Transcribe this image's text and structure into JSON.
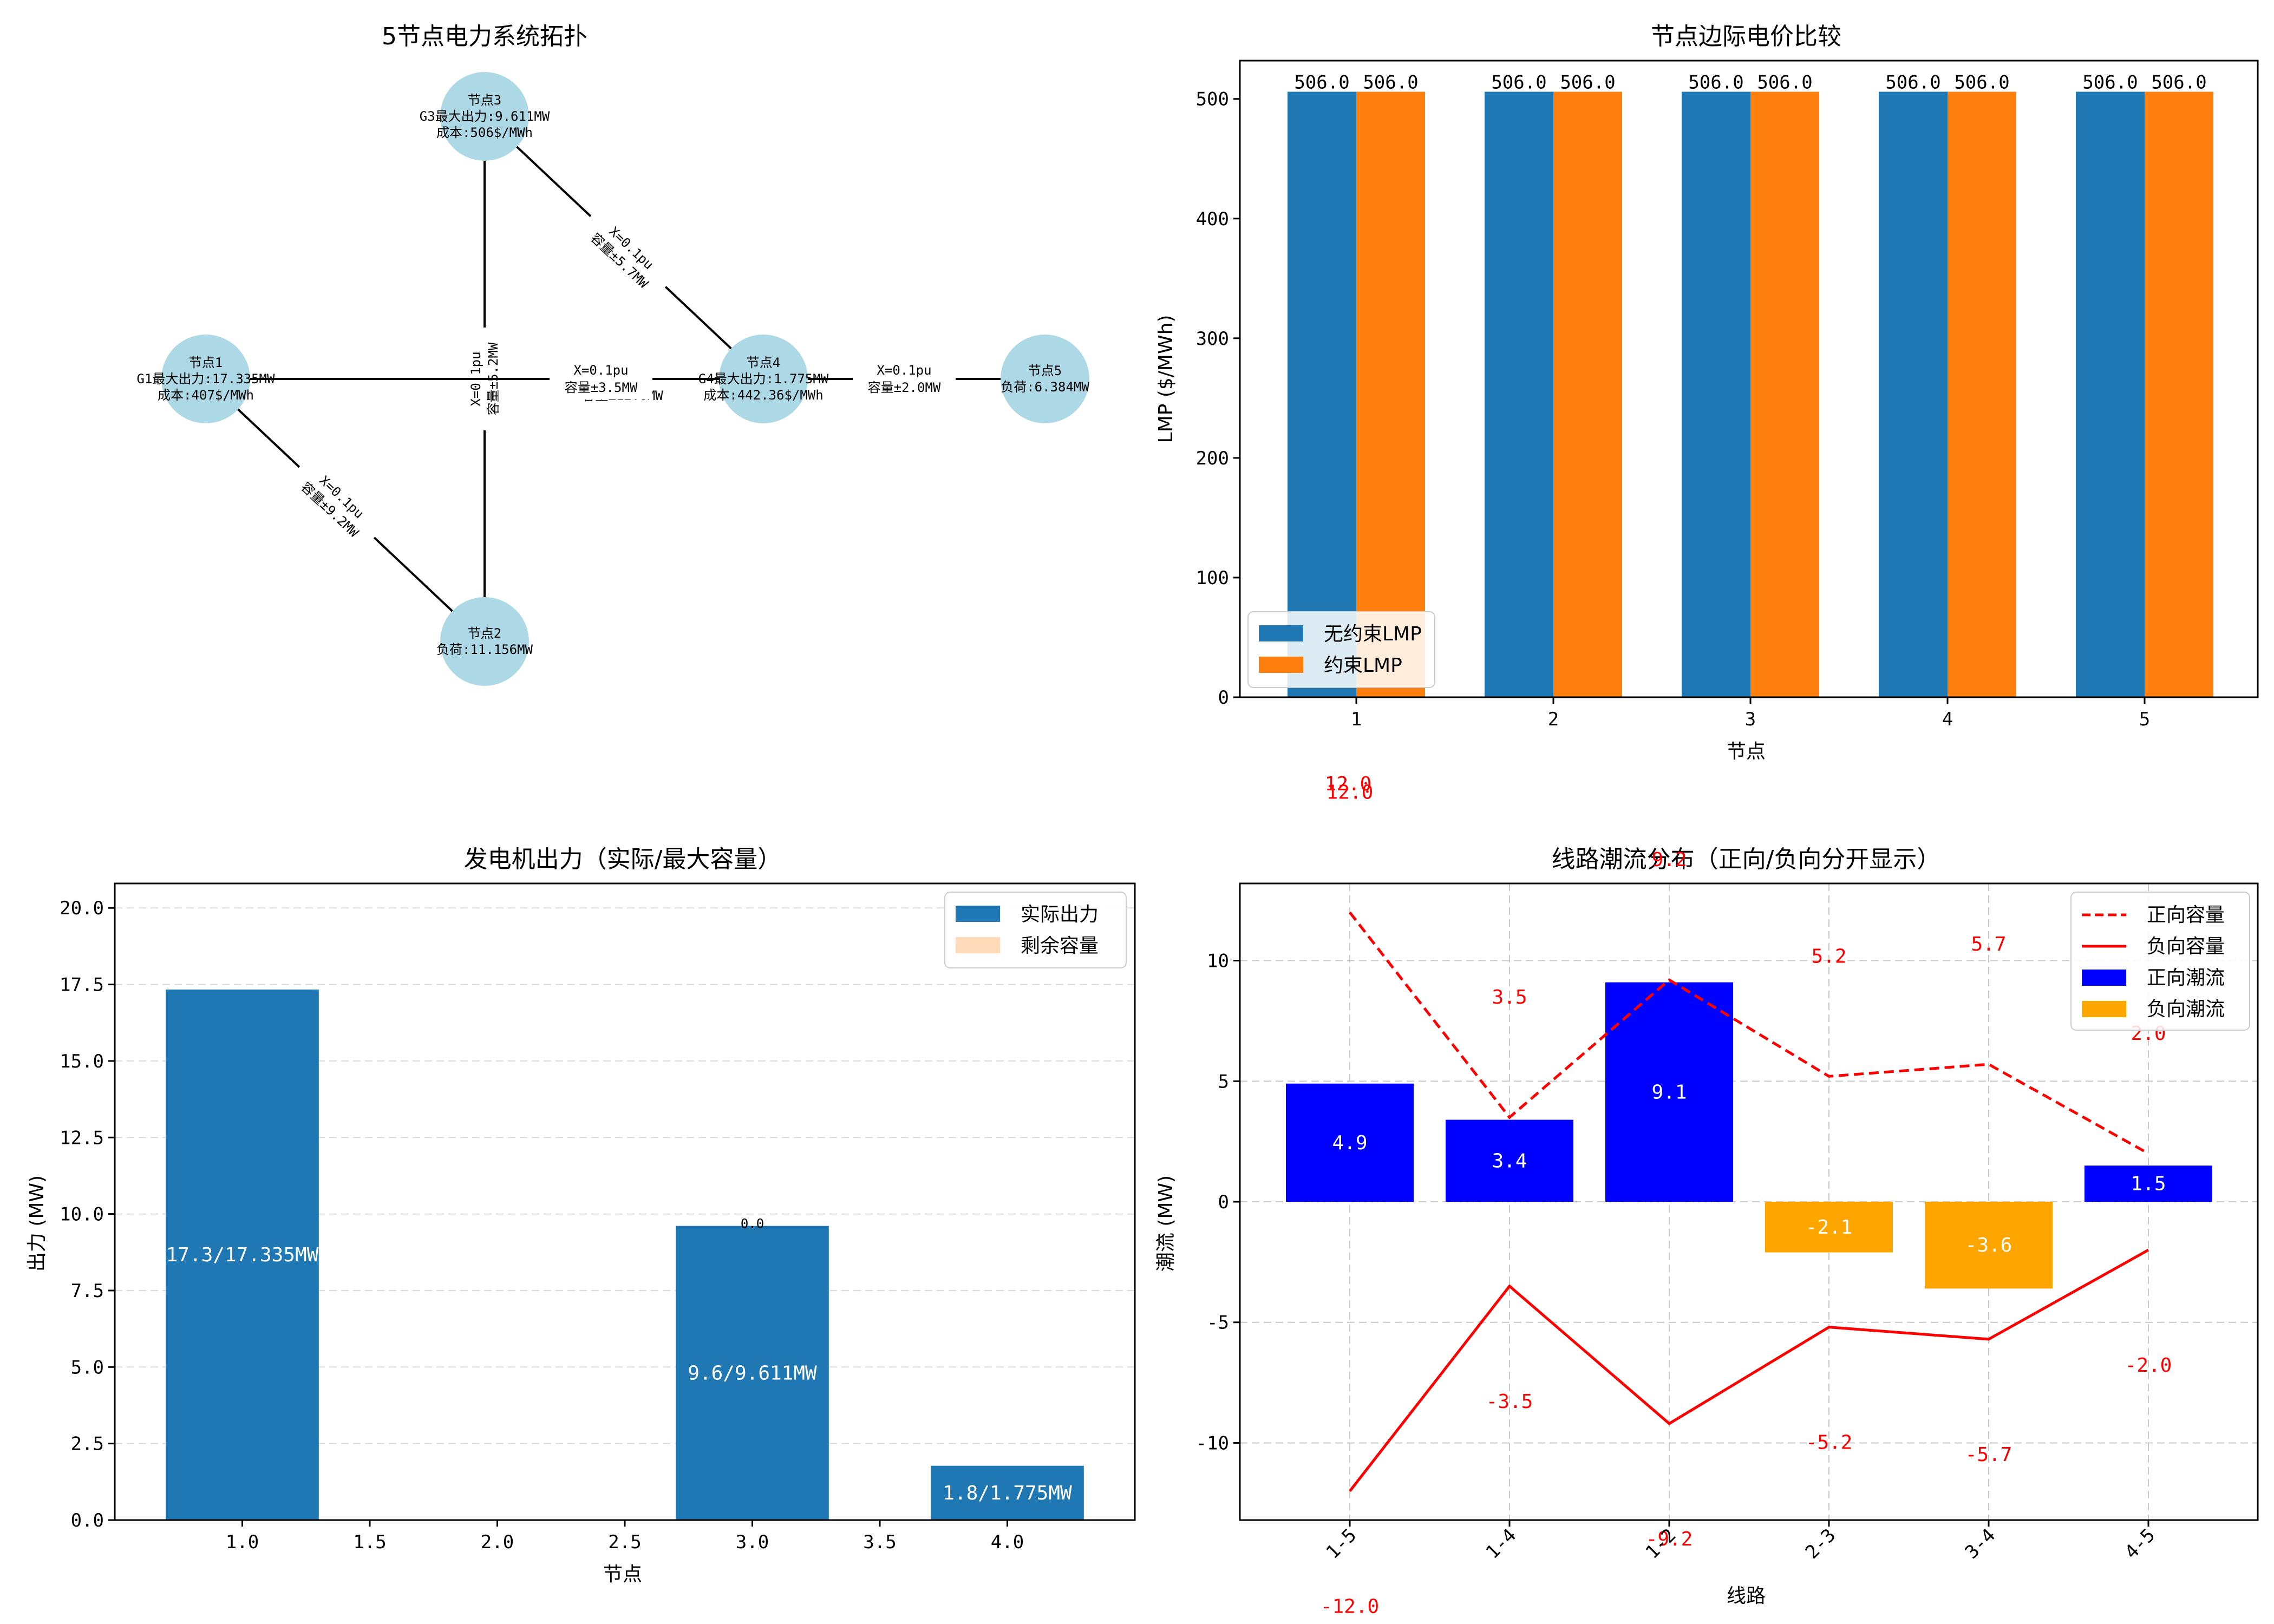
{
  "chart_data": [
    {
      "type": "network",
      "title": "5节点电力系统拓扑",
      "nodes": [
        {
          "id": "1",
          "lines": [
            "节点1",
            "G1最大出力:17.335MW",
            "成本:407$/MWh"
          ]
        },
        {
          "id": "2",
          "lines": [
            "节点2",
            "负荷:11.156MW"
          ]
        },
        {
          "id": "3",
          "lines": [
            "节点3",
            "G3最大出力:9.611MW",
            "成本:506$/MWh"
          ]
        },
        {
          "id": "4",
          "lines": [
            "节点4",
            "G4最大出力:1.775MW",
            "成本:442.36$/MWh"
          ]
        },
        {
          "id": "5",
          "lines": [
            "节点5",
            "负荷:6.384MW"
          ]
        }
      ],
      "edges": [
        {
          "from": "1",
          "to": "5",
          "lines": [
            "X=0.1pu",
            "容量±12.0MW"
          ]
        },
        {
          "from": "1",
          "to": "2",
          "lines": [
            "X=0.1pu",
            "容量±9.2MW"
          ]
        },
        {
          "from": "2",
          "to": "3",
          "lines": [
            "X=0.1pu",
            "容量±5.2MW"
          ]
        },
        {
          "from": "3",
          "to": "4",
          "lines": [
            "X=0.1pu",
            "容量±5.7MW"
          ]
        },
        {
          "from": "4",
          "to": "5",
          "lines": [
            "X=0.1pu",
            "容量±2.0MW"
          ]
        },
        {
          "from": "1",
          "to": "4",
          "lines": [
            "X=0.1pu",
            "容量±3.5MW"
          ]
        }
      ]
    },
    {
      "type": "bar",
      "title": "节点边际电价比较",
      "xlabel": "节点",
      "ylabel": "LMP ($/MWh)",
      "ylim": [
        0,
        532
      ],
      "yticks": [
        0,
        100,
        200,
        300,
        400,
        500
      ],
      "categories": [
        "1",
        "2",
        "3",
        "4",
        "5"
      ],
      "series": [
        {
          "name": "无约束LMP",
          "values": [
            506.0,
            506.0,
            506.0,
            506.0,
            506.0
          ],
          "color": "#1f77b4"
        },
        {
          "name": "约束LMP",
          "values": [
            506.0,
            506.0,
            506.0,
            506.0,
            506.0
          ],
          "color": "#ff7f0e"
        }
      ],
      "legend": "lower-left",
      "stray_label": "12.0"
    },
    {
      "type": "bar",
      "title": "发电机出力（实际/最大容量）",
      "xlabel": "节点",
      "ylabel": "出力 (MW)",
      "xlim": [
        0.5,
        4.5
      ],
      "ylim": [
        0,
        20.8
      ],
      "xticks": [
        1.0,
        1.5,
        2.0,
        2.5,
        3.0,
        3.5,
        4.0
      ],
      "yticks": [
        0.0,
        2.5,
        5.0,
        7.5,
        10.0,
        12.5,
        15.0,
        17.5,
        20.0
      ],
      "bars": [
        {
          "x": 1,
          "actual": 17.335,
          "max": 17.335,
          "label": "17.3/17.335MW",
          "top_label": ""
        },
        {
          "x": 3,
          "actual": 9.611,
          "max": 9.611,
          "label": "9.6/9.611MW",
          "top_label": "0.0"
        },
        {
          "x": 4,
          "actual": 1.775,
          "max": 1.775,
          "label": "1.8/1.775MW",
          "top_label": ""
        }
      ],
      "series": [
        {
          "name": "实际出力",
          "color": "#1f77b4"
        },
        {
          "name": "剩余容量",
          "color": "#ffdab9"
        }
      ],
      "legend": "upper-right",
      "grid": "y-dashed"
    },
    {
      "type": "bar",
      "title": "线路潮流分布（正向/负向分开显示）",
      "xlabel": "线路",
      "ylabel": "潮流 (MW)",
      "ylim": [
        -13.2,
        13.2
      ],
      "yticks": [
        -10,
        -5,
        0,
        5,
        10
      ],
      "categories": [
        "1-5",
        "1-4",
        "1-2",
        "2-3",
        "3-4",
        "4-5"
      ],
      "flows": [
        4.9,
        3.4,
        9.1,
        -2.1,
        -3.6,
        1.5
      ],
      "flow_labels": [
        "4.9",
        "3.4",
        "9.1",
        "-2.1",
        "-3.6",
        "1.5"
      ],
      "capacity_pos": [
        12.0,
        3.5,
        9.2,
        5.2,
        5.7,
        2.0
      ],
      "capacity_neg": [
        -12.0,
        -3.5,
        -9.2,
        -5.2,
        -5.7,
        -2.0
      ],
      "cap_pos_labels": [
        "12.0",
        "3.5",
        "9.2",
        "5.2",
        "5.7",
        "2.0"
      ],
      "cap_neg_labels": [
        "-12.0",
        "-3.5",
        "-9.2",
        "-5.2",
        "-5.7",
        "-2.0"
      ],
      "series": [
        {
          "name": "正向容量",
          "color": "#ff0000",
          "style": "dashed"
        },
        {
          "name": "负向容量",
          "color": "#ff0000",
          "style": "solid"
        },
        {
          "name": "正向潮流",
          "color": "#0000ff"
        },
        {
          "name": "负向潮流",
          "color": "#ffa500"
        }
      ],
      "legend": "upper-right",
      "grid": "both-dashed"
    }
  ]
}
